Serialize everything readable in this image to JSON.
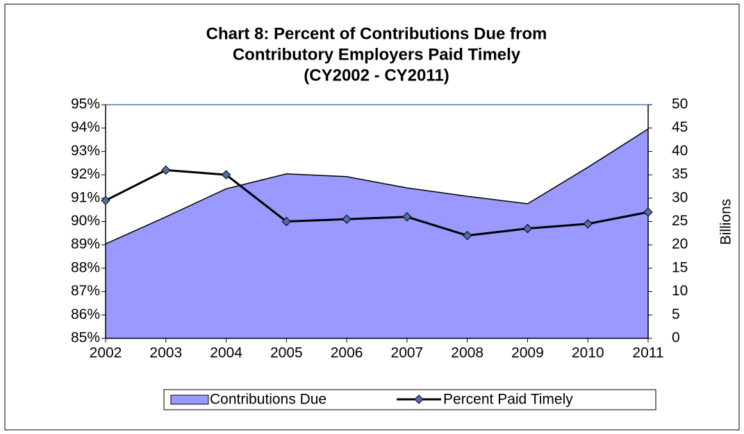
{
  "chart_data": {
    "type": "area-line",
    "title": [
      "Chart 8: Percent of Contributions Due from",
      "Contributory Employers Paid Timely",
      "(CY2002 - CY2011)"
    ],
    "y2label": "Billions",
    "categories": [
      "2002",
      "2003",
      "2004",
      "2005",
      "2006",
      "2007",
      "2008",
      "2009",
      "2010",
      "2011"
    ],
    "series": [
      {
        "name": "Contributions Due",
        "type": "area",
        "axis": "y2",
        "color": "#9999ff",
        "values": [
          20.2,
          26,
          32,
          35.2,
          34.6,
          32.2,
          30.4,
          28.8,
          36.6,
          44.8
        ]
      },
      {
        "name": "Percent Paid Timely",
        "type": "line",
        "color": "#000000",
        "values": [
          90.9,
          92.2,
          92.0,
          90.0,
          90.1,
          90.2,
          89.4,
          89.7,
          89.9,
          90.4
        ]
      }
    ],
    "ylim": [
      85,
      95
    ],
    "yticks": [
      {
        "value": 85,
        "label": "85%"
      },
      {
        "value": 86,
        "label": "86%"
      },
      {
        "value": 87,
        "label": "87%"
      },
      {
        "value": 88,
        "label": "88%"
      },
      {
        "value": 89,
        "label": "89%"
      },
      {
        "value": 90,
        "label": "90%"
      },
      {
        "value": 91,
        "label": "91%"
      },
      {
        "value": 92,
        "label": "92%"
      },
      {
        "value": 93,
        "label": "93%"
      },
      {
        "value": 94,
        "label": "94%"
      },
      {
        "value": 95,
        "label": "95%"
      }
    ],
    "y2lim": [
      0,
      50
    ],
    "y2ticks": [
      0,
      5,
      10,
      15,
      20,
      25,
      30,
      35,
      40,
      45,
      50
    ],
    "legend": "bottom"
  }
}
